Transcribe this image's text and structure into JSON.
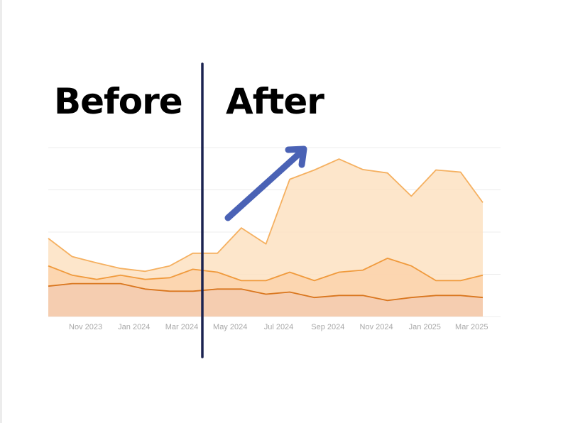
{
  "headings": {
    "before": "Before",
    "after": "After"
  },
  "colors": {
    "divider": "#1b2350",
    "arrow": "#4a62b5",
    "outer_area": "#fde2c2",
    "outer_line": "#f5b060",
    "middle_area": "#fbd2ac",
    "middle_line": "#f09a3c",
    "inner_area": "#f3cbb0",
    "inner_line": "#d9761e",
    "gridline": "#ececec",
    "tick_label": "#a8a8a8"
  },
  "chart_data": {
    "type": "area",
    "title": "",
    "xlabel": "",
    "ylabel": "",
    "ylim": [
      0,
      4
    ],
    "grid": true,
    "legend": "none",
    "x": [
      "2023-09-15",
      "2023-10-15",
      "2023-11-15",
      "2023-12-15",
      "2024-01-15",
      "2024-02-15",
      "2024-03-15",
      "2024-04-15",
      "2024-05-15",
      "2024-06-15",
      "2024-07-15",
      "2024-08-15",
      "2024-09-15",
      "2024-10-15",
      "2024-11-15",
      "2024-12-15",
      "2025-01-15",
      "2025-02-15",
      "2025-03-15"
    ],
    "x_ticks": [
      "Nov 2023",
      "Jan 2024",
      "Mar 2024",
      "May 2024",
      "Jul 2024",
      "Sep 2024",
      "Nov 2024",
      "Jan 2025",
      "Mar 2025"
    ],
    "series": [
      {
        "values": [
          1.85,
          1.42,
          1.27,
          1.14,
          1.07,
          1.2,
          1.5,
          1.5,
          2.1,
          1.72,
          3.25,
          3.47,
          3.73,
          3.48,
          3.4,
          2.85,
          3.47,
          3.42,
          2.7
        ]
      },
      {
        "values": [
          1.2,
          0.98,
          0.88,
          0.98,
          0.88,
          0.92,
          1.12,
          1.05,
          0.85,
          0.85,
          1.05,
          0.85,
          1.05,
          1.1,
          1.38,
          1.2,
          0.85,
          0.85,
          0.98
        ]
      },
      {
        "values": [
          0.72,
          0.78,
          0.78,
          0.78,
          0.65,
          0.6,
          0.6,
          0.65,
          0.65,
          0.53,
          0.58,
          0.45,
          0.5,
          0.5,
          0.38,
          0.45,
          0.5,
          0.5,
          0.45
        ]
      }
    ]
  }
}
